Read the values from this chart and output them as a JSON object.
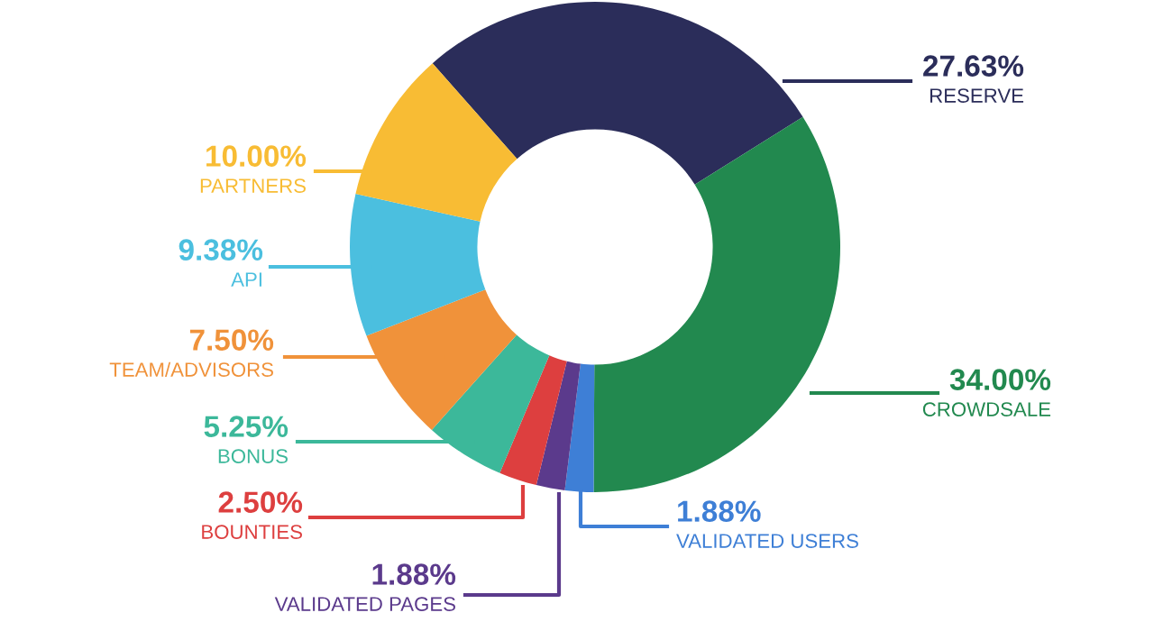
{
  "chart_data": {
    "type": "donut",
    "categories": [
      "RESERVE",
      "CROWDSALE",
      "VALIDATED USERS",
      "VALIDATED PAGES",
      "BOUNTIES",
      "BONUS",
      "TEAM/ADVISORS",
      "API",
      "PARTNERS"
    ],
    "values": [
      27.63,
      34.0,
      1.88,
      1.88,
      2.5,
      5.25,
      7.5,
      9.38,
      10.0
    ],
    "value_labels": [
      "27.63%",
      "34.00%",
      "1.88%",
      "1.88%",
      "2.50%",
      "5.25%",
      "7.50%",
      "9.38%",
      "10.00%"
    ],
    "colors": [
      "#2b2d5a",
      "#22894f",
      "#3e7fd6",
      "#5b3a8c",
      "#dd3f3f",
      "#3cb89a",
      "#f0923a",
      "#4bbfdf",
      "#f8bc34"
    ],
    "legend": false
  }
}
